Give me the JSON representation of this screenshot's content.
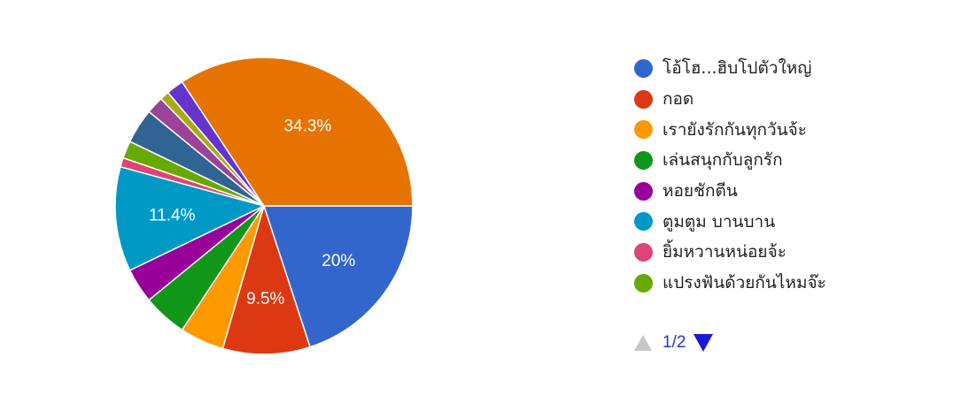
{
  "chart_data": {
    "type": "pie",
    "title": "",
    "slices": [
      {
        "label": "โอ้โฮ...ฮิบโปตัวใหญ่",
        "value": 20,
        "color": "#3366cc",
        "data_label": "20%"
      },
      {
        "label": "กอด",
        "value": 9.5,
        "color": "#dc3912",
        "data_label": "9.5%"
      },
      {
        "label": "เรายังรักกันทุกวันจ้ะ",
        "value": 4.8,
        "color": "#ff9900",
        "data_label": ""
      },
      {
        "label": "เล่นสนุกกับลูกรัก",
        "value": 4.8,
        "color": "#109618",
        "data_label": ""
      },
      {
        "label": "หอยชักตีน",
        "value": 3.8,
        "color": "#990099",
        "data_label": ""
      },
      {
        "label": "ตูมตูม บานบาน",
        "value": 11.4,
        "color": "#0099c6",
        "data_label": "11.4%"
      },
      {
        "label": "ยิ้มหวานหน่อยจ้ะ",
        "value": 1,
        "color": "#dd4477",
        "data_label": ""
      },
      {
        "label": "แปรงฟันด้วยกันไหมจ๊ะ",
        "value": 1.9,
        "color": "#66aa00",
        "data_label": ""
      },
      {
        "label": "",
        "value": 3.8,
        "color": "#316395",
        "data_label": ""
      },
      {
        "label": "",
        "value": 1.9,
        "color": "#994499",
        "data_label": ""
      },
      {
        "label": "",
        "value": 1,
        "color": "#aaaa11",
        "data_label": ""
      },
      {
        "label": "",
        "value": 1.9,
        "color": "#6633cc",
        "data_label": ""
      },
      {
        "label": "",
        "value": 34.3,
        "color": "#e67300",
        "data_label": "34.3%"
      }
    ],
    "legend": {
      "placement": "right",
      "items": [
        {
          "label": "โอ้โฮ...ฮิบโปตัวใหญ่",
          "color": "#3366cc"
        },
        {
          "label": "กอด",
          "color": "#dc3912"
        },
        {
          "label": "เรายังรักกันทุกวันจ้ะ",
          "color": "#ff9900"
        },
        {
          "label": "เล่นสนุกกับลูกรัก",
          "color": "#109618"
        },
        {
          "label": "หอยชักตีน",
          "color": "#990099"
        },
        {
          "label": "ตูมตูม บานบาน",
          "color": "#0099c6"
        },
        {
          "label": "ยิ้มหวานหน่อยจ้ะ",
          "color": "#dd4477"
        },
        {
          "label": "แปรงฟันด้วยกันไหมจ๊ะ",
          "color": "#66aa00"
        }
      ]
    }
  },
  "pager": {
    "text": "1/2"
  }
}
